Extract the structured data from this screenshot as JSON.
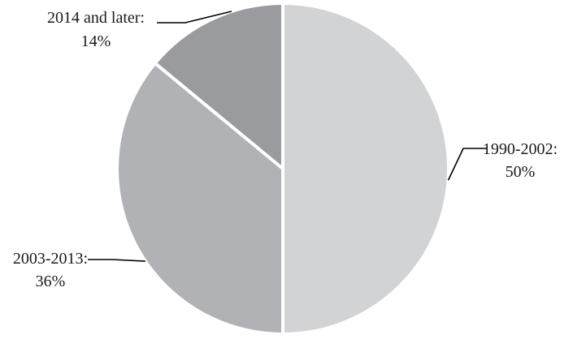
{
  "chart_data": {
    "type": "pie",
    "title": "",
    "slices": [
      {
        "label": "1990-2002:",
        "value": 50,
        "value_label": "50%",
        "color": "#d2d3d5"
      },
      {
        "label": "2003-2013:",
        "value": 36,
        "value_label": "36%",
        "color": "#b1b2b5"
      },
      {
        "label": "2014 and later:",
        "value": 14,
        "value_label": "14%",
        "color": "#9a9b9e"
      }
    ],
    "start": "12 o'clock",
    "direction": "clockwise",
    "slice_border_color": "#ffffff",
    "leader_line_color": "#000000"
  }
}
